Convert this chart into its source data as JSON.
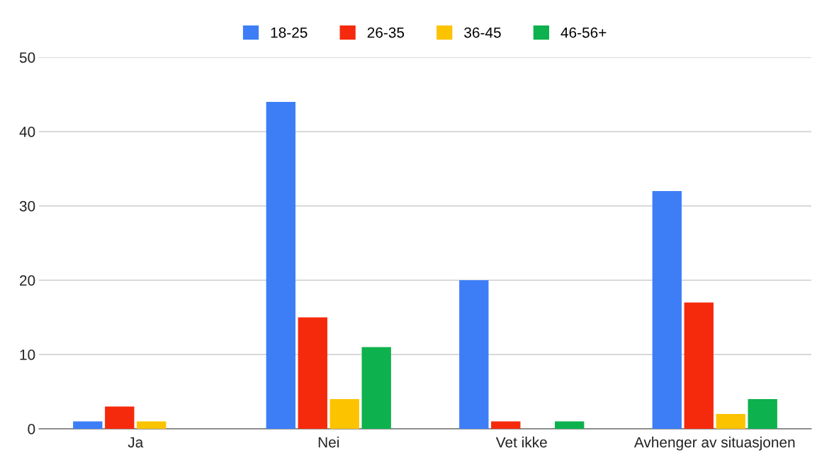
{
  "chart_data": {
    "type": "bar",
    "categories": [
      "Ja",
      "Nei",
      "Vet ikke",
      "Avhenger av situasjonen"
    ],
    "series": [
      {
        "name": "18-25",
        "color": "#3d7ef7",
        "values": [
          1,
          44,
          20,
          32
        ]
      },
      {
        "name": "26-35",
        "color": "#f52a0c",
        "values": [
          3,
          15,
          1,
          17
        ]
      },
      {
        "name": "36-45",
        "color": "#fcc300",
        "values": [
          1,
          4,
          0,
          2
        ]
      },
      {
        "name": "46-56+",
        "color": "#0db14d",
        "values": [
          0,
          11,
          1,
          4
        ]
      }
    ],
    "ylim": [
      0,
      50
    ],
    "yticks": [
      0,
      10,
      20,
      30,
      40,
      50
    ],
    "grid": "y",
    "legend": "top"
  }
}
